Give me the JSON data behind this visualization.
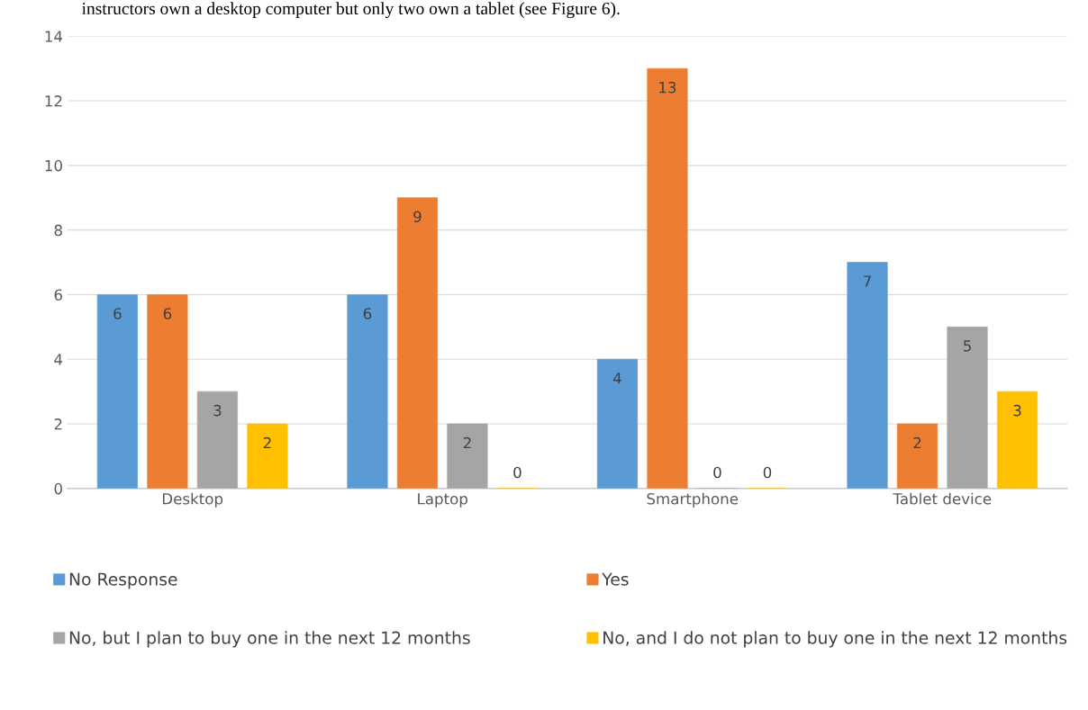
{
  "chart_data": {
    "type": "bar",
    "categories": [
      "Desktop",
      "Laptop",
      "Smartphone",
      "Tablet device"
    ],
    "series": [
      {
        "name": "No Response",
        "color": "#5b9bd5",
        "values": [
          6,
          6,
          4,
          7
        ]
      },
      {
        "name": "Yes",
        "color": "#ed7d31",
        "values": [
          6,
          9,
          13,
          2
        ]
      },
      {
        "name": "No, but I plan to buy one in the next 12 months",
        "color": "#a5a5a5",
        "values": [
          3,
          2,
          0,
          5
        ]
      },
      {
        "name": "No, and I do not plan to buy one in the next 12 months",
        "color": "#ffc000",
        "values": [
          2,
          0,
          0,
          3
        ]
      }
    ],
    "ylim": [
      0,
      14
    ],
    "yticks": [
      0,
      2,
      4,
      6,
      8,
      10,
      12,
      14
    ],
    "grid": "y",
    "legend": "bottom",
    "data_labels": true,
    "annotations": [
      "instructors own a desktop computer but only two own a tablet (see Figure 6)."
    ]
  }
}
